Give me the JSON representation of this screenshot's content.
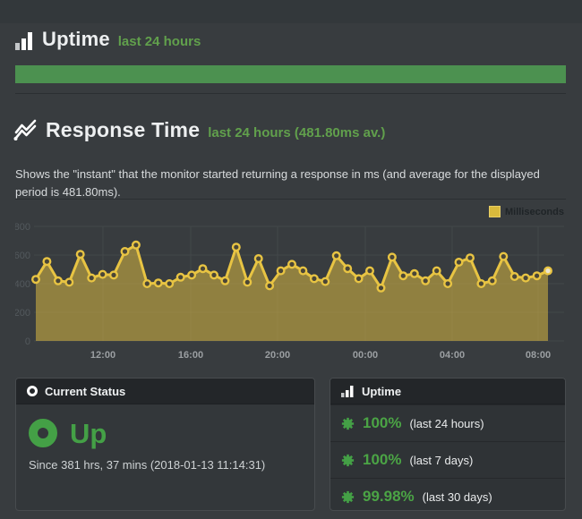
{
  "uptime_section": {
    "title": "Uptime",
    "subtitle": "last 24 hours",
    "bar_color": "#4c9150"
  },
  "response_section": {
    "title": "Response Time",
    "subtitle": "last 24 hours (481.80ms av.)",
    "description": "Shows the \"instant\" that the monitor started returning a response in ms (and average for the displayed period is 481.80ms)."
  },
  "chart_data": {
    "type": "area",
    "title": "",
    "legend": [
      {
        "label": "Milliseconds",
        "color": "#e8c443"
      }
    ],
    "xlabel": "",
    "ylabel": "",
    "ylim": [
      0,
      800
    ],
    "y_ticks": [
      0,
      200,
      400,
      600,
      800
    ],
    "x_ticks": [
      "12:00",
      "16:00",
      "20:00",
      "00:00",
      "04:00",
      "08:00"
    ],
    "grid": true,
    "legend_position": "top-right",
    "unit": "ms",
    "average_ms": "481.80",
    "values": [
      430,
      555,
      420,
      410,
      605,
      440,
      465,
      460,
      625,
      670,
      400,
      405,
      400,
      445,
      460,
      505,
      460,
      420,
      655,
      410,
      575,
      385,
      490,
      535,
      490,
      435,
      415,
      595,
      505,
      435,
      490,
      370,
      585,
      455,
      470,
      420,
      490,
      400,
      550,
      580,
      400,
      420,
      590,
      450,
      440,
      455,
      490
    ]
  },
  "status_box": {
    "header": "Current Status",
    "status": "Up",
    "since": "Since 381 hrs, 37 mins (2018-01-13 11:14:31)"
  },
  "uptime_box": {
    "header": "Uptime",
    "rows": [
      {
        "value": "100%",
        "period": "(last 24 hours)"
      },
      {
        "value": "100%",
        "period": "(last 7 days)"
      },
      {
        "value": "99.98%",
        "period": "(last 30 days)"
      }
    ]
  },
  "colors": {
    "page_bg": "#383c3f",
    "green_accent": "#44a046",
    "green_text": "#61a04c",
    "line": "#e8c443",
    "area_fill": "rgba(231,196,65,0.5)",
    "point_fill": "#4a4637"
  }
}
